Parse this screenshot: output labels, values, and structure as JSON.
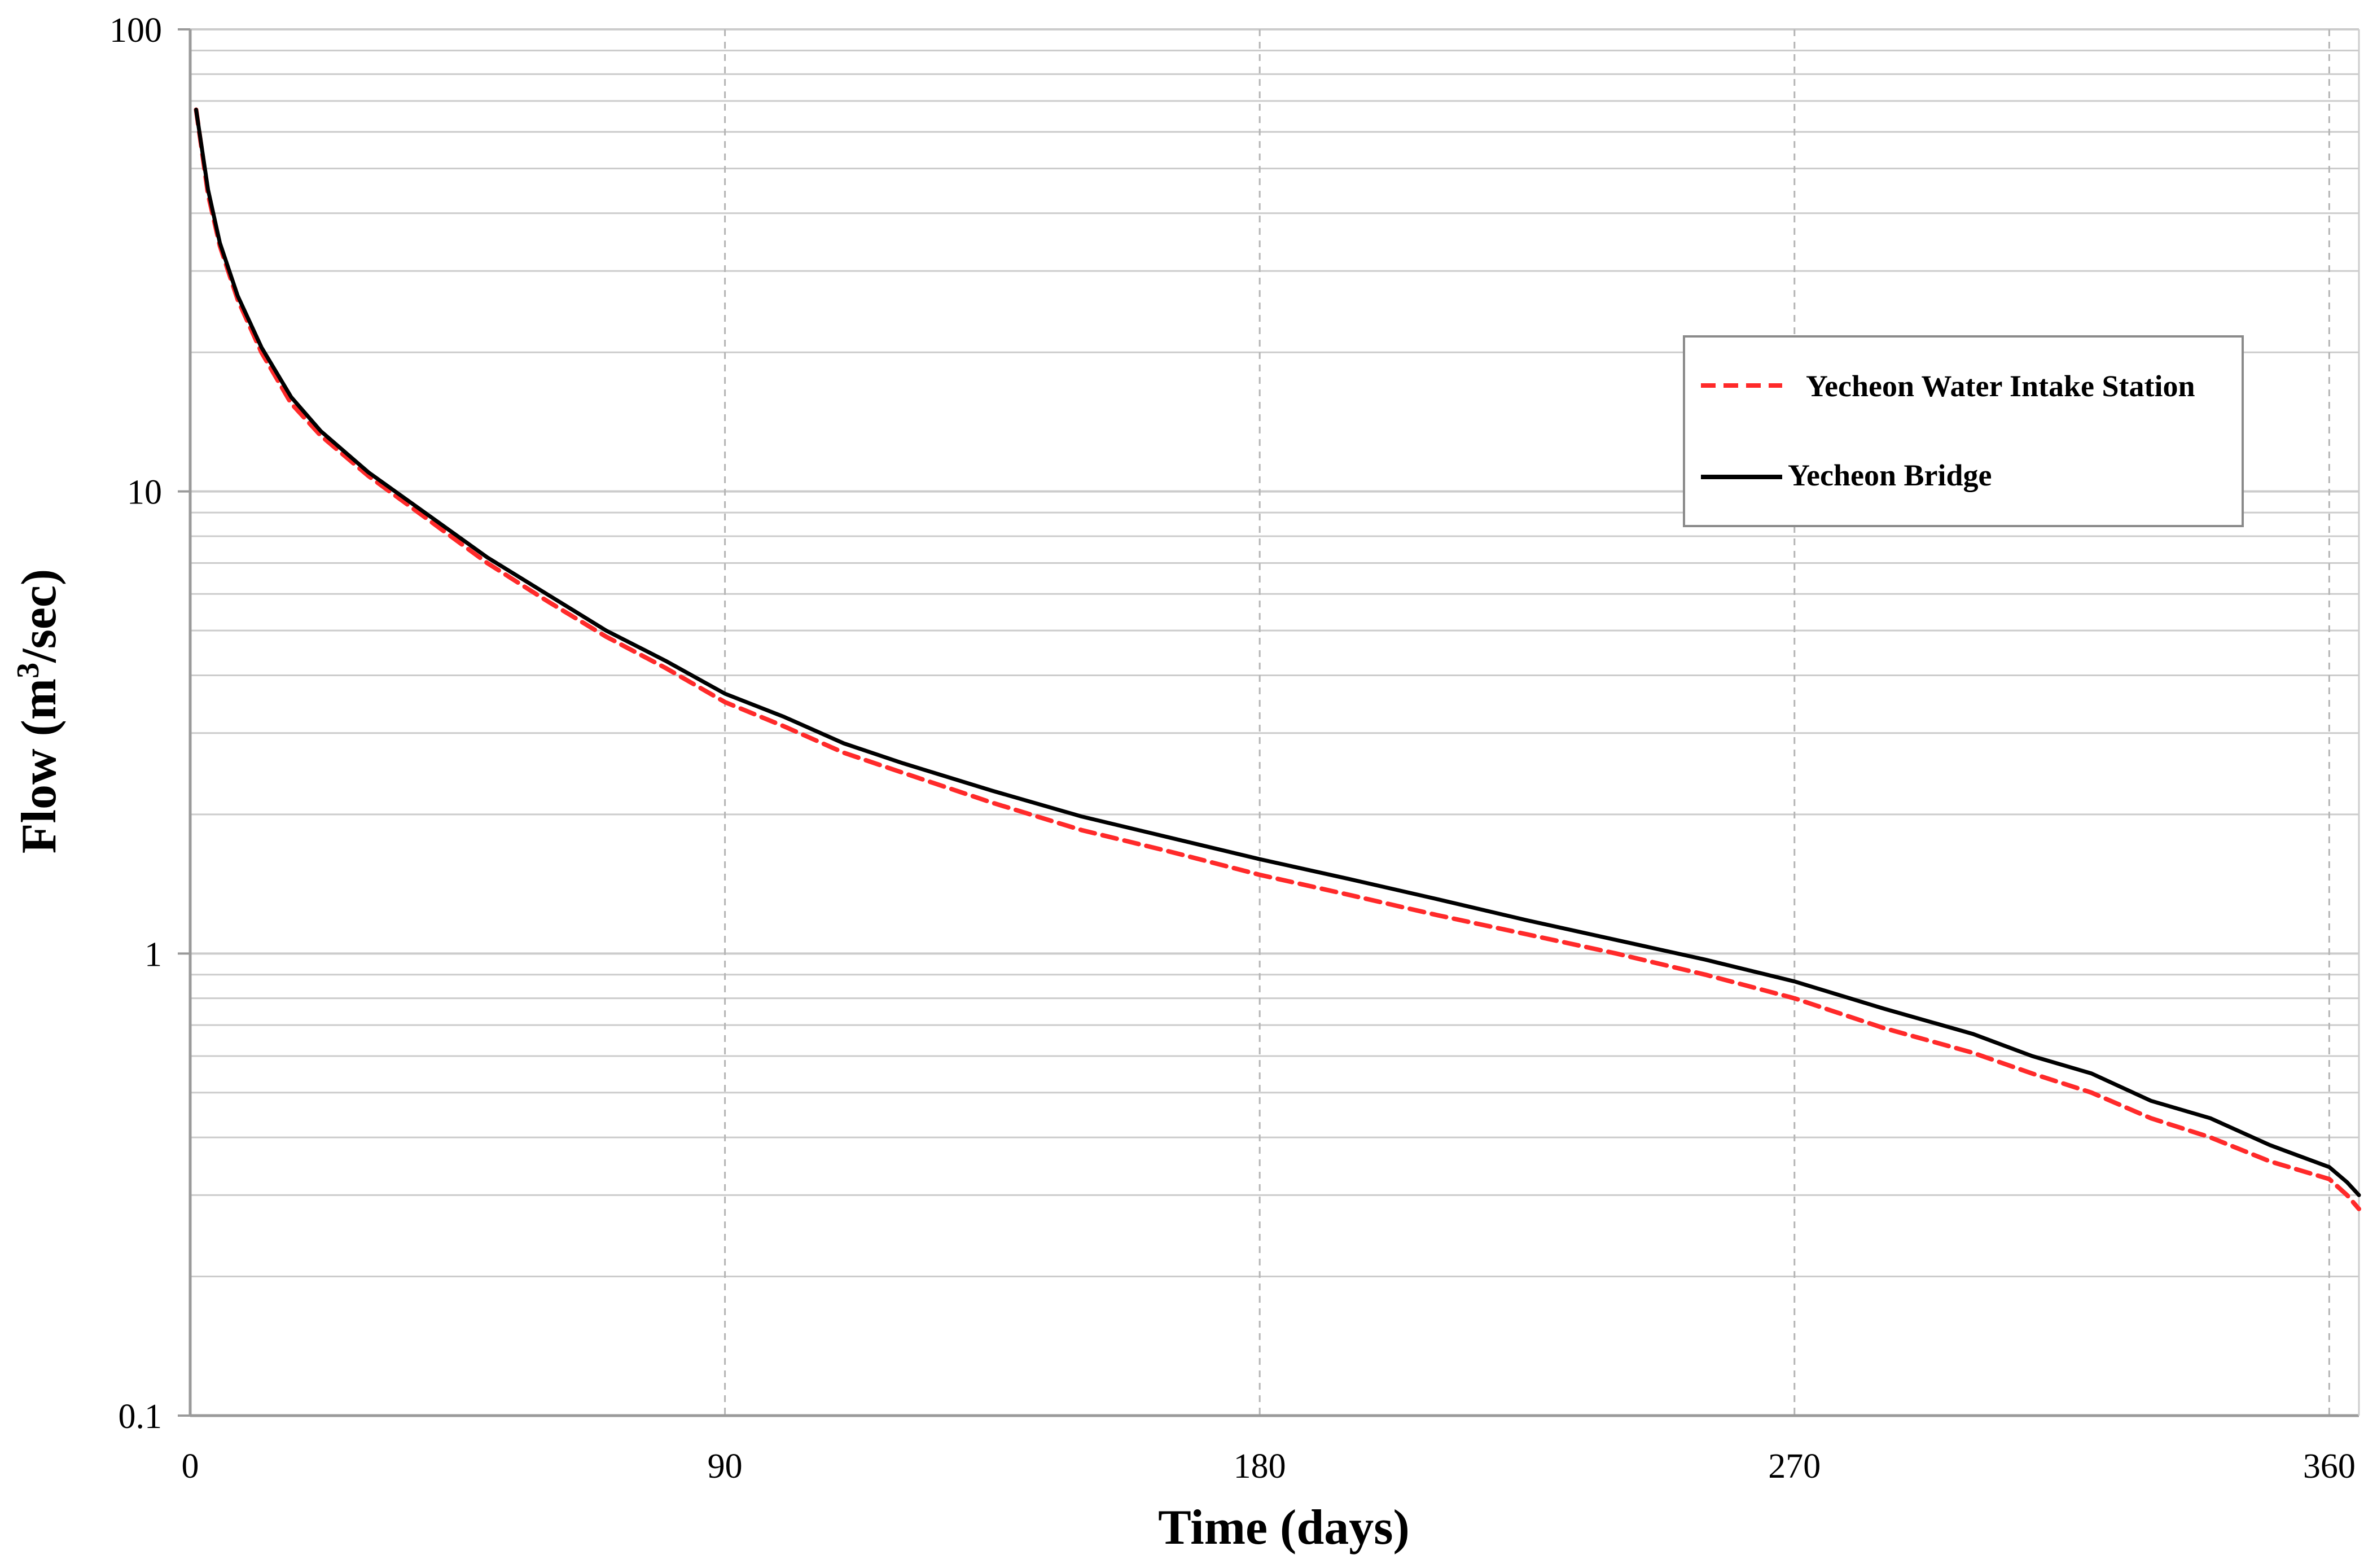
{
  "chart_data": {
    "type": "line",
    "title": "",
    "xlabel": "Time (days)",
    "ylabel_main": "Flow (m",
    "ylabel_sup": "3",
    "ylabel_tail": "/sec)",
    "ylabel": "Flow (m³/sec)",
    "xlim": [
      0,
      365
    ],
    "ylim": [
      0.1,
      100
    ],
    "yscale": "log",
    "x_ticks": [
      "0",
      "90",
      "180",
      "270",
      "360"
    ],
    "y_ticks": [
      "0.1",
      "1",
      "10",
      "100"
    ],
    "grid": true,
    "legend_position": "top-right",
    "series": [
      {
        "name": "Yecheon Water Intake Station",
        "style": "dashed",
        "color": "#ff2a2a",
        "x": [
          1,
          3,
          5,
          8,
          12,
          17,
          22,
          30,
          40,
          50,
          60,
          70,
          80,
          90,
          100,
          110,
          120,
          135,
          150,
          165,
          180,
          195,
          210,
          225,
          240,
          255,
          270,
          285,
          300,
          310,
          320,
          330,
          340,
          350,
          360,
          363,
          365
        ],
        "y": [
          67,
          44,
          34,
          26,
          20,
          15.5,
          13.2,
          10.8,
          8.7,
          7.0,
          5.8,
          4.85,
          4.15,
          3.5,
          3.1,
          2.72,
          2.46,
          2.12,
          1.85,
          1.66,
          1.48,
          1.34,
          1.21,
          1.1,
          1.0,
          0.9,
          0.8,
          0.69,
          0.61,
          0.55,
          0.5,
          0.44,
          0.4,
          0.355,
          0.325,
          0.3,
          0.28
        ]
      },
      {
        "name": "Yecheon Bridge",
        "style": "solid",
        "color": "#000000",
        "x": [
          1,
          3,
          5,
          8,
          12,
          17,
          22,
          30,
          40,
          50,
          60,
          70,
          80,
          90,
          100,
          110,
          120,
          135,
          150,
          165,
          180,
          195,
          210,
          225,
          240,
          255,
          270,
          285,
          300,
          310,
          320,
          330,
          340,
          350,
          360,
          363,
          365
        ],
        "y": [
          67,
          45,
          34.5,
          26.5,
          20.5,
          16,
          13.5,
          11.0,
          8.9,
          7.2,
          6.0,
          5.0,
          4.3,
          3.65,
          3.25,
          2.85,
          2.58,
          2.25,
          1.98,
          1.78,
          1.6,
          1.45,
          1.31,
          1.18,
          1.07,
          0.97,
          0.87,
          0.76,
          0.67,
          0.6,
          0.55,
          0.48,
          0.44,
          0.385,
          0.345,
          0.32,
          0.3
        ]
      }
    ]
  },
  "colors": {
    "grid": "#cccccc",
    "axis": "#9a9a9a",
    "legend_border": "#8a8a8a"
  }
}
